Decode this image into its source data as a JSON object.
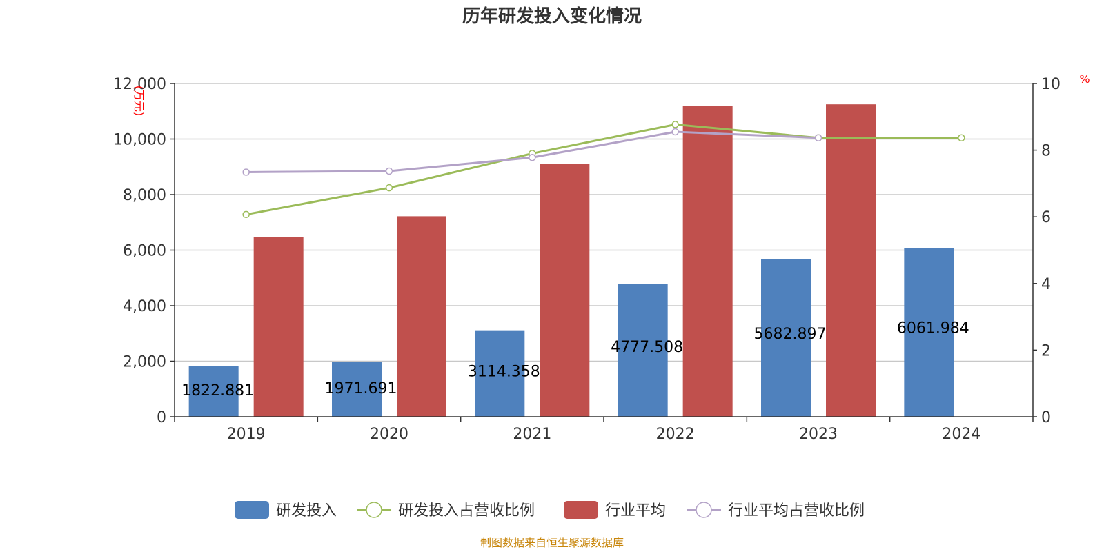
{
  "chart_data": {
    "type": "bar",
    "title": "历年研发投入变化情况",
    "categories": [
      "2019",
      "2020",
      "2021",
      "2022",
      "2023",
      "2024"
    ],
    "y_left": {
      "unit": "(万元)",
      "ylim": [
        0,
        12000
      ],
      "ticks": [
        "0",
        "2,000",
        "4,000",
        "6,000",
        "8,000",
        "10,000",
        "12,000"
      ]
    },
    "y_right": {
      "unit": "%",
      "ylim": [
        0,
        10
      ],
      "ticks": [
        "0",
        "2",
        "4",
        "6",
        "8",
        "10"
      ]
    },
    "grid": true,
    "legend_position": "bottom",
    "series": [
      {
        "name": "研发投入",
        "kind": "bar",
        "axis": "left",
        "color": "#4f81bd",
        "values": [
          1822.881,
          1971.691,
          3114.358,
          4777.508,
          5682.897,
          6061.984
        ],
        "labels": [
          "1822.881",
          "1971.691",
          "3114.358",
          "4777.508",
          "5682.897",
          "6061.984"
        ]
      },
      {
        "name": "研发投入占营收比例",
        "kind": "line",
        "axis": "right",
        "color": "#9bbb59",
        "values": [
          6.07,
          6.87,
          7.9,
          8.77,
          8.37,
          8.37
        ]
      },
      {
        "name": "行业平均",
        "kind": "bar",
        "axis": "left",
        "color": "#c0504d",
        "values": [
          6460,
          7220,
          9110,
          11180,
          11250,
          null
        ]
      },
      {
        "name": "行业平均占营收比例",
        "kind": "line",
        "axis": "right",
        "color": "#b3a2c7",
        "values": [
          7.34,
          7.37,
          7.78,
          8.55,
          8.37,
          null
        ]
      }
    ]
  },
  "source_note": "制图数据来自恒生聚源数据库"
}
